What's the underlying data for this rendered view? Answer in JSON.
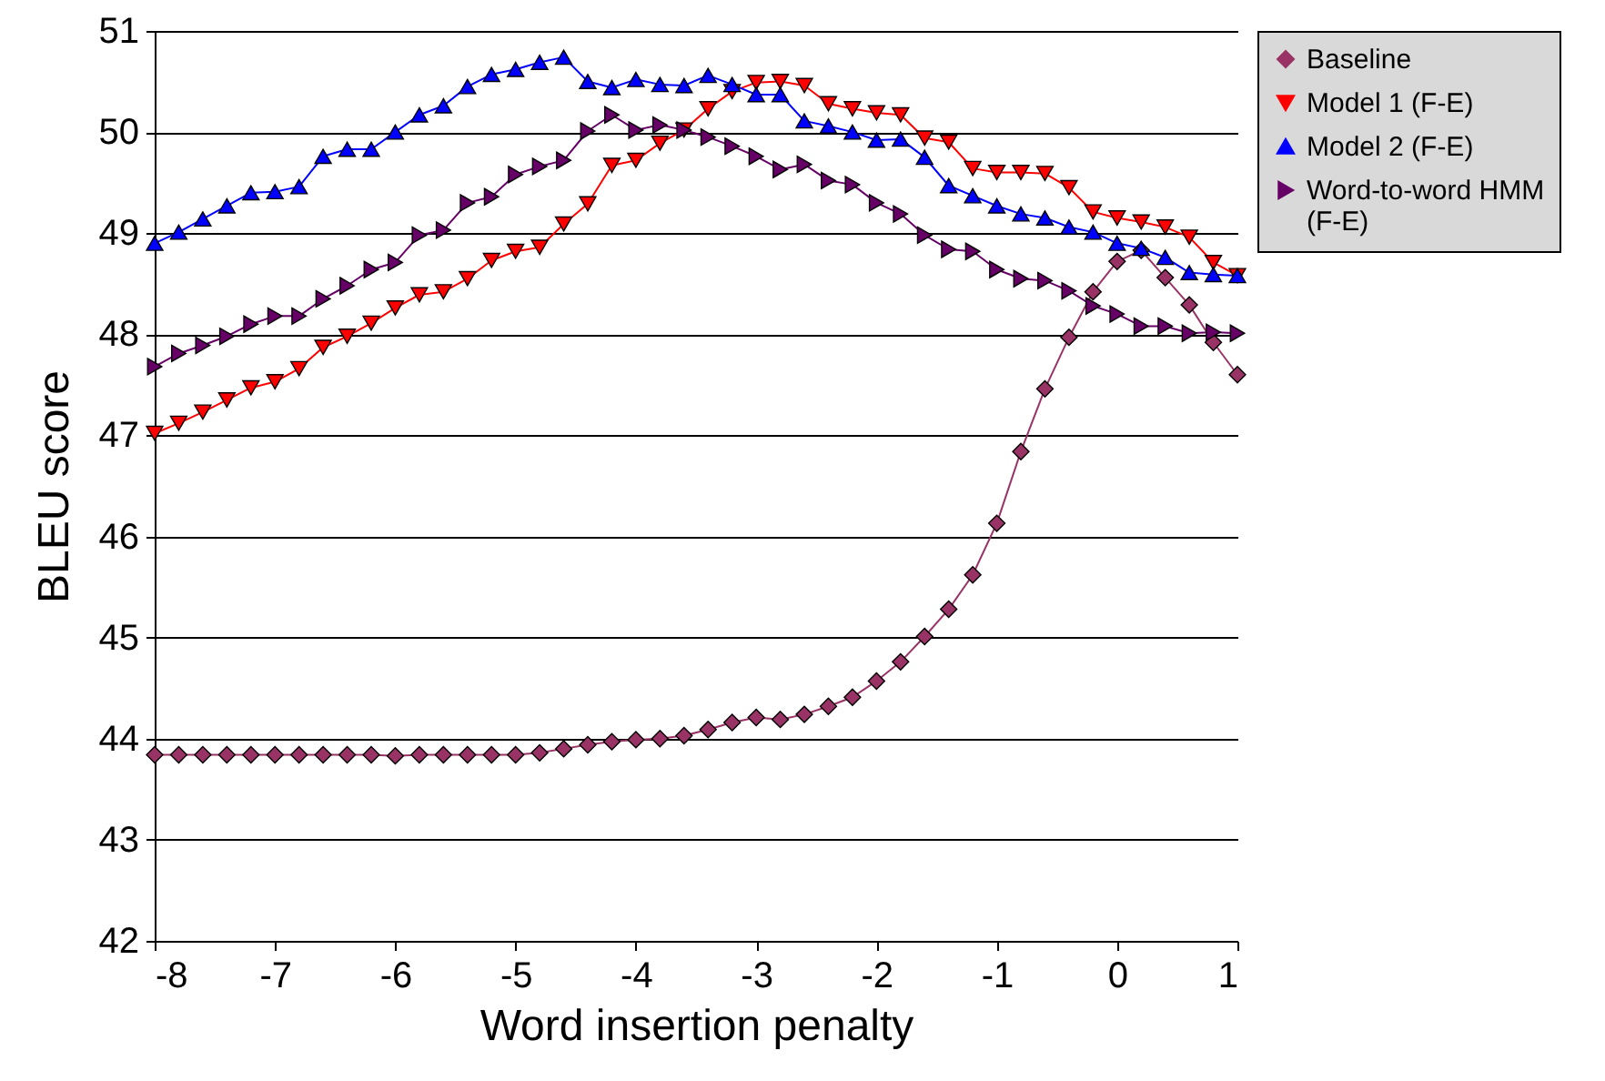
{
  "chart_data": {
    "type": "line",
    "xlabel": "Word insertion penalty",
    "ylabel": "BLEU score",
    "x": [
      -8,
      -7.8,
      -7.6,
      -7.4,
      -7.2,
      -7,
      -6.8,
      -6.6,
      -6.4,
      -6.2,
      -6,
      -5.8,
      -5.6,
      -5.4,
      -5.2,
      -5,
      -4.8,
      -4.6,
      -4.4,
      -4.2,
      -4,
      -3.8,
      -3.6,
      -3.4,
      -3.2,
      -3,
      -2.8,
      -2.6,
      -2.4,
      -2.2,
      -2,
      -1.8,
      -1.6,
      -1.4,
      -1.2,
      -1,
      -0.8,
      -0.6,
      -0.4,
      -0.2,
      0,
      0.2,
      0.4,
      0.6,
      0.8,
      1
    ],
    "series": [
      {
        "name": "Baseline",
        "color": "#993366",
        "marker": "diamond",
        "values": [
          43.84,
          43.84,
          43.84,
          43.84,
          43.84,
          43.84,
          43.84,
          43.84,
          43.84,
          43.84,
          43.83,
          43.84,
          43.84,
          43.84,
          43.84,
          43.84,
          43.86,
          43.9,
          43.94,
          43.97,
          43.99,
          44.0,
          44.03,
          44.09,
          44.16,
          44.21,
          44.19,
          44.24,
          44.32,
          44.41,
          44.57,
          44.76,
          45.01,
          45.28,
          45.62,
          46.13,
          46.84,
          47.46,
          47.97,
          48.42,
          48.72,
          48.83,
          48.56,
          48.29,
          47.92,
          47.6
        ]
      },
      {
        "name": "Model 1 (F-E)",
        "color": "#ff0000",
        "marker": "triangle-down",
        "values": [
          47.02,
          47.12,
          47.23,
          47.35,
          47.47,
          47.53,
          47.66,
          47.87,
          47.98,
          48.11,
          48.26,
          48.39,
          48.42,
          48.55,
          48.73,
          48.82,
          48.86,
          49.09,
          49.29,
          49.67,
          49.72,
          49.89,
          50.02,
          50.23,
          50.4,
          50.49,
          50.5,
          50.46,
          50.28,
          50.23,
          50.19,
          50.17,
          49.94,
          49.9,
          49.64,
          49.6,
          49.6,
          49.59,
          49.45,
          49.21,
          49.15,
          49.11,
          49.06,
          48.96,
          48.71,
          48.58
        ]
      },
      {
        "name": "Model 2 (F-E)",
        "color": "#0000ff",
        "marker": "triangle-up",
        "values": [
          48.9,
          49.01,
          49.14,
          49.27,
          49.4,
          49.41,
          49.46,
          49.76,
          49.83,
          49.83,
          50.0,
          50.17,
          50.26,
          50.45,
          50.57,
          50.62,
          50.69,
          50.74,
          50.5,
          50.44,
          50.52,
          50.47,
          50.46,
          50.56,
          50.47,
          50.37,
          50.37,
          50.11,
          50.06,
          50.0,
          49.92,
          49.93,
          49.75,
          49.47,
          49.37,
          49.27,
          49.19,
          49.15,
          49.06,
          49.01,
          48.9,
          48.85,
          48.76,
          48.61,
          48.59,
          48.58
        ]
      },
      {
        "name": "Word-to-word HMM (F-E)",
        "color": "#660066",
        "marker": "triangle-right",
        "values": [
          47.68,
          47.81,
          47.89,
          47.98,
          48.1,
          48.18,
          48.18,
          48.35,
          48.48,
          48.64,
          48.71,
          48.98,
          49.03,
          49.3,
          49.36,
          49.58,
          49.66,
          49.72,
          50.01,
          50.17,
          50.02,
          50.07,
          50.02,
          49.95,
          49.86,
          49.76,
          49.63,
          49.68,
          49.52,
          49.48,
          49.3,
          49.19,
          48.98,
          48.84,
          48.82,
          48.64,
          48.55,
          48.53,
          48.43,
          48.28,
          48.2,
          48.08,
          48.08,
          48.01,
          48.02,
          48.01
        ]
      }
    ],
    "xlim": [
      -8,
      1
    ],
    "xticks": [
      -8,
      -7,
      -6,
      -5,
      -4,
      -3,
      -2,
      -1,
      0,
      1
    ],
    "ylim": [
      42,
      51
    ],
    "yticks": [
      42,
      43,
      44,
      45,
      46,
      47,
      48,
      49,
      50,
      51
    ],
    "grid": "y",
    "legend": "top right"
  }
}
